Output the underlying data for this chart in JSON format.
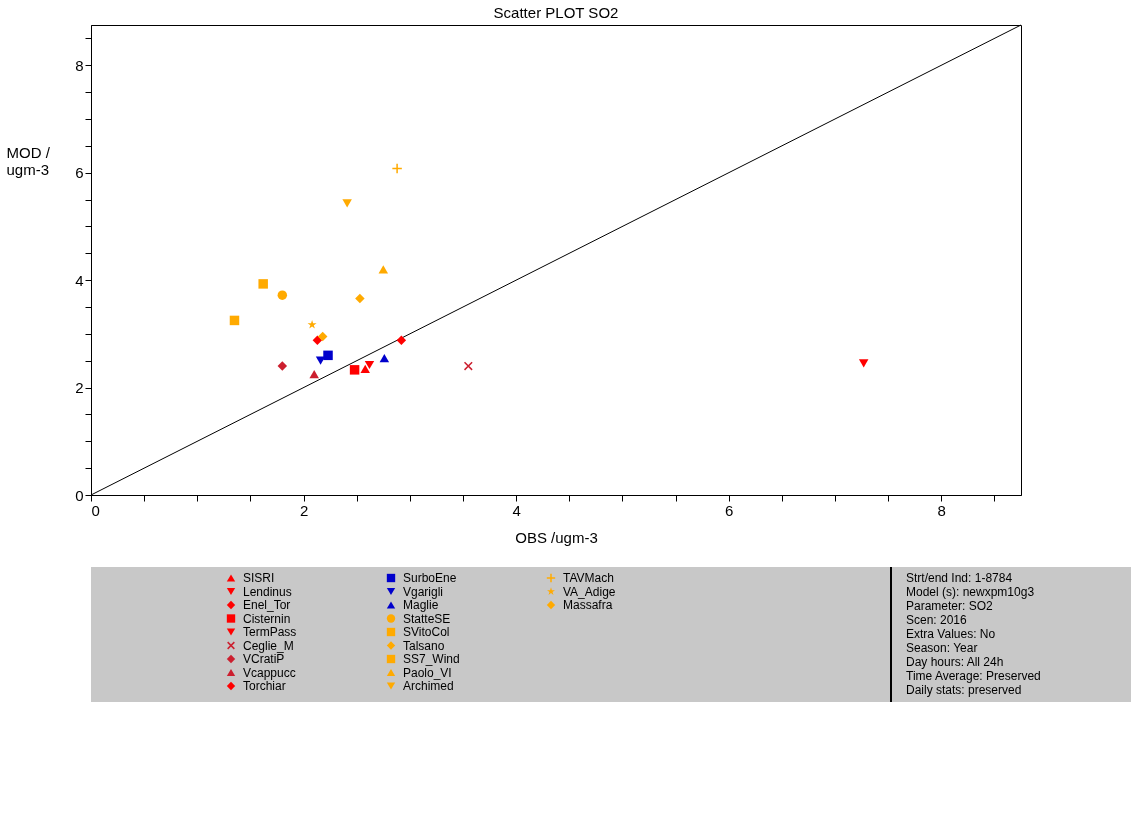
{
  "chart_data": {
    "type": "scatter",
    "title": "Scatter PLOT   SO2",
    "xlabel": "OBS /ugm-3",
    "ylabel": "MOD / ugm-3",
    "xlim": [
      0,
      8.75
    ],
    "ylim": [
      0,
      8.75
    ],
    "xticks": [
      0,
      {
        "value": 0.5,
        "label": null
      },
      {
        "value": 1,
        "label": null
      },
      {
        "value": 1.5,
        "label": null
      },
      2,
      {
        "value": 2.5,
        "label": null
      },
      {
        "value": 3,
        "label": null
      },
      {
        "value": 3.5,
        "label": null
      },
      4,
      {
        "value": 4.5,
        "label": null
      },
      {
        "value": 5,
        "label": null
      },
      {
        "value": 5.5,
        "label": null
      },
      6,
      {
        "value": 6.5,
        "label": null
      },
      {
        "value": 7,
        "label": null
      },
      {
        "value": 7.5,
        "label": null
      },
      8,
      {
        "value": 8.5,
        "label": null
      }
    ],
    "yticks": [
      0,
      {
        "value": 0.5,
        "label": null
      },
      {
        "value": 1,
        "label": null
      },
      {
        "value": 1.5,
        "label": null
      },
      2,
      {
        "value": 2.5,
        "label": null
      },
      {
        "value": 3,
        "label": null
      },
      {
        "value": 3.5,
        "label": null
      },
      4,
      {
        "value": 4.5,
        "label": null
      },
      {
        "value": 5,
        "label": null
      },
      {
        "value": 5.5,
        "label": null
      },
      6,
      {
        "value": 6.5,
        "label": null
      },
      {
        "value": 7,
        "label": null
      },
      {
        "value": 7.5,
        "label": null
      },
      8,
      {
        "value": 8.5,
        "label": null
      }
    ],
    "grid": false,
    "legend": "bottom",
    "series": [
      {
        "type": "line",
        "color": "#000000",
        "x": [
          0,
          8.75
        ],
        "values": [
          0,
          8.75
        ]
      },
      {
        "name": "SISRI",
        "color": "#ff0000",
        "marker": "triangle",
        "x": [
          2.58
        ],
        "values": [
          2.35
        ]
      },
      {
        "name": "Lendinus",
        "color": "#ff0000",
        "marker": "triangle-down",
        "x": [
          2.62
        ],
        "values": [
          2.42
        ]
      },
      {
        "name": "Enel_Tor",
        "color": "#ff0000",
        "marker": "diamond",
        "x": [
          2.13
        ],
        "values": [
          2.88
        ]
      },
      {
        "name": "Cisternin",
        "color": "#ff0000",
        "marker": "square",
        "x": [
          2.48
        ],
        "values": [
          2.33
        ]
      },
      {
        "name": "TermPass",
        "color": "#ff0000",
        "marker": "triangle-down",
        "x": [
          7.27
        ],
        "values": [
          2.45
        ]
      },
      {
        "name": "Ceglie_M",
        "color": "#cc1f2f",
        "marker": "x",
        "x": [
          3.55
        ],
        "values": [
          2.4
        ]
      },
      {
        "name": "VCratiP",
        "color": "#cc1f2f",
        "marker": "diamond",
        "x": [
          1.8
        ],
        "values": [
          2.4
        ]
      },
      {
        "name": "Vcappucc",
        "color": "#cc1f2f",
        "marker": "triangle",
        "x": [
          2.1
        ],
        "values": [
          2.25
        ]
      },
      {
        "name": "Torchiar",
        "color": "#ff0000",
        "marker": "diamond",
        "x": [
          2.92
        ],
        "values": [
          2.88
        ]
      },
      {
        "name": "SurboEne",
        "color": "#0000cc",
        "marker": "square",
        "x": [
          2.23
        ],
        "values": [
          2.6
        ]
      },
      {
        "name": "Vgarigli",
        "color": "#0000cc",
        "marker": "triangle-down",
        "x": [
          2.16
        ],
        "values": [
          2.5
        ]
      },
      {
        "name": "Maglie",
        "color": "#0000cc",
        "marker": "triangle",
        "x": [
          2.76
        ],
        "values": [
          2.55
        ]
      },
      {
        "name": "StatteSE",
        "color": "#ffaa00",
        "marker": "circle",
        "x": [
          1.8
        ],
        "values": [
          3.72
        ]
      },
      {
        "name": "SVitoCol",
        "color": "#ffaa00",
        "marker": "square",
        "x": [
          1.35
        ],
        "values": [
          3.25
        ]
      },
      {
        "name": "Talsano",
        "color": "#ffaa00",
        "marker": "diamond",
        "x": [
          2.53
        ],
        "values": [
          3.66
        ]
      },
      {
        "name": "SS7_Wind",
        "color": "#ffaa00",
        "marker": "square",
        "x": [
          1.62
        ],
        "values": [
          3.93
        ]
      },
      {
        "name": "Paolo_VI",
        "color": "#ffaa00",
        "marker": "triangle",
        "x": [
          2.75
        ],
        "values": [
          4.2
        ]
      },
      {
        "name": "Archimed",
        "color": "#ffaa00",
        "marker": "triangle-down",
        "x": [
          2.41
        ],
        "values": [
          5.43
        ]
      },
      {
        "name": "TAVMach",
        "color": "#ffaa00",
        "marker": "cross",
        "x": [
          2.88
        ],
        "values": [
          6.08
        ]
      },
      {
        "name": "VA_Adige",
        "color": "#ffaa00",
        "marker": "star",
        "x": [
          2.08
        ],
        "values": [
          3.17
        ]
      },
      {
        "name": "Massafra",
        "color": "#ffaa00",
        "marker": "diamond",
        "x": [
          2.18
        ],
        "values": [
          2.95
        ]
      }
    ],
    "annotations": [
      "Strt/end Ind: 1-8784",
      "Model (s): newxpm10g3",
      "Parameter: SO2",
      "Scen: 2016",
      "Extra Values: No",
      "Season: Year",
      "Day hours: All 24h",
      "Time Average: Preserved",
      "Daily stats: preserved"
    ]
  }
}
